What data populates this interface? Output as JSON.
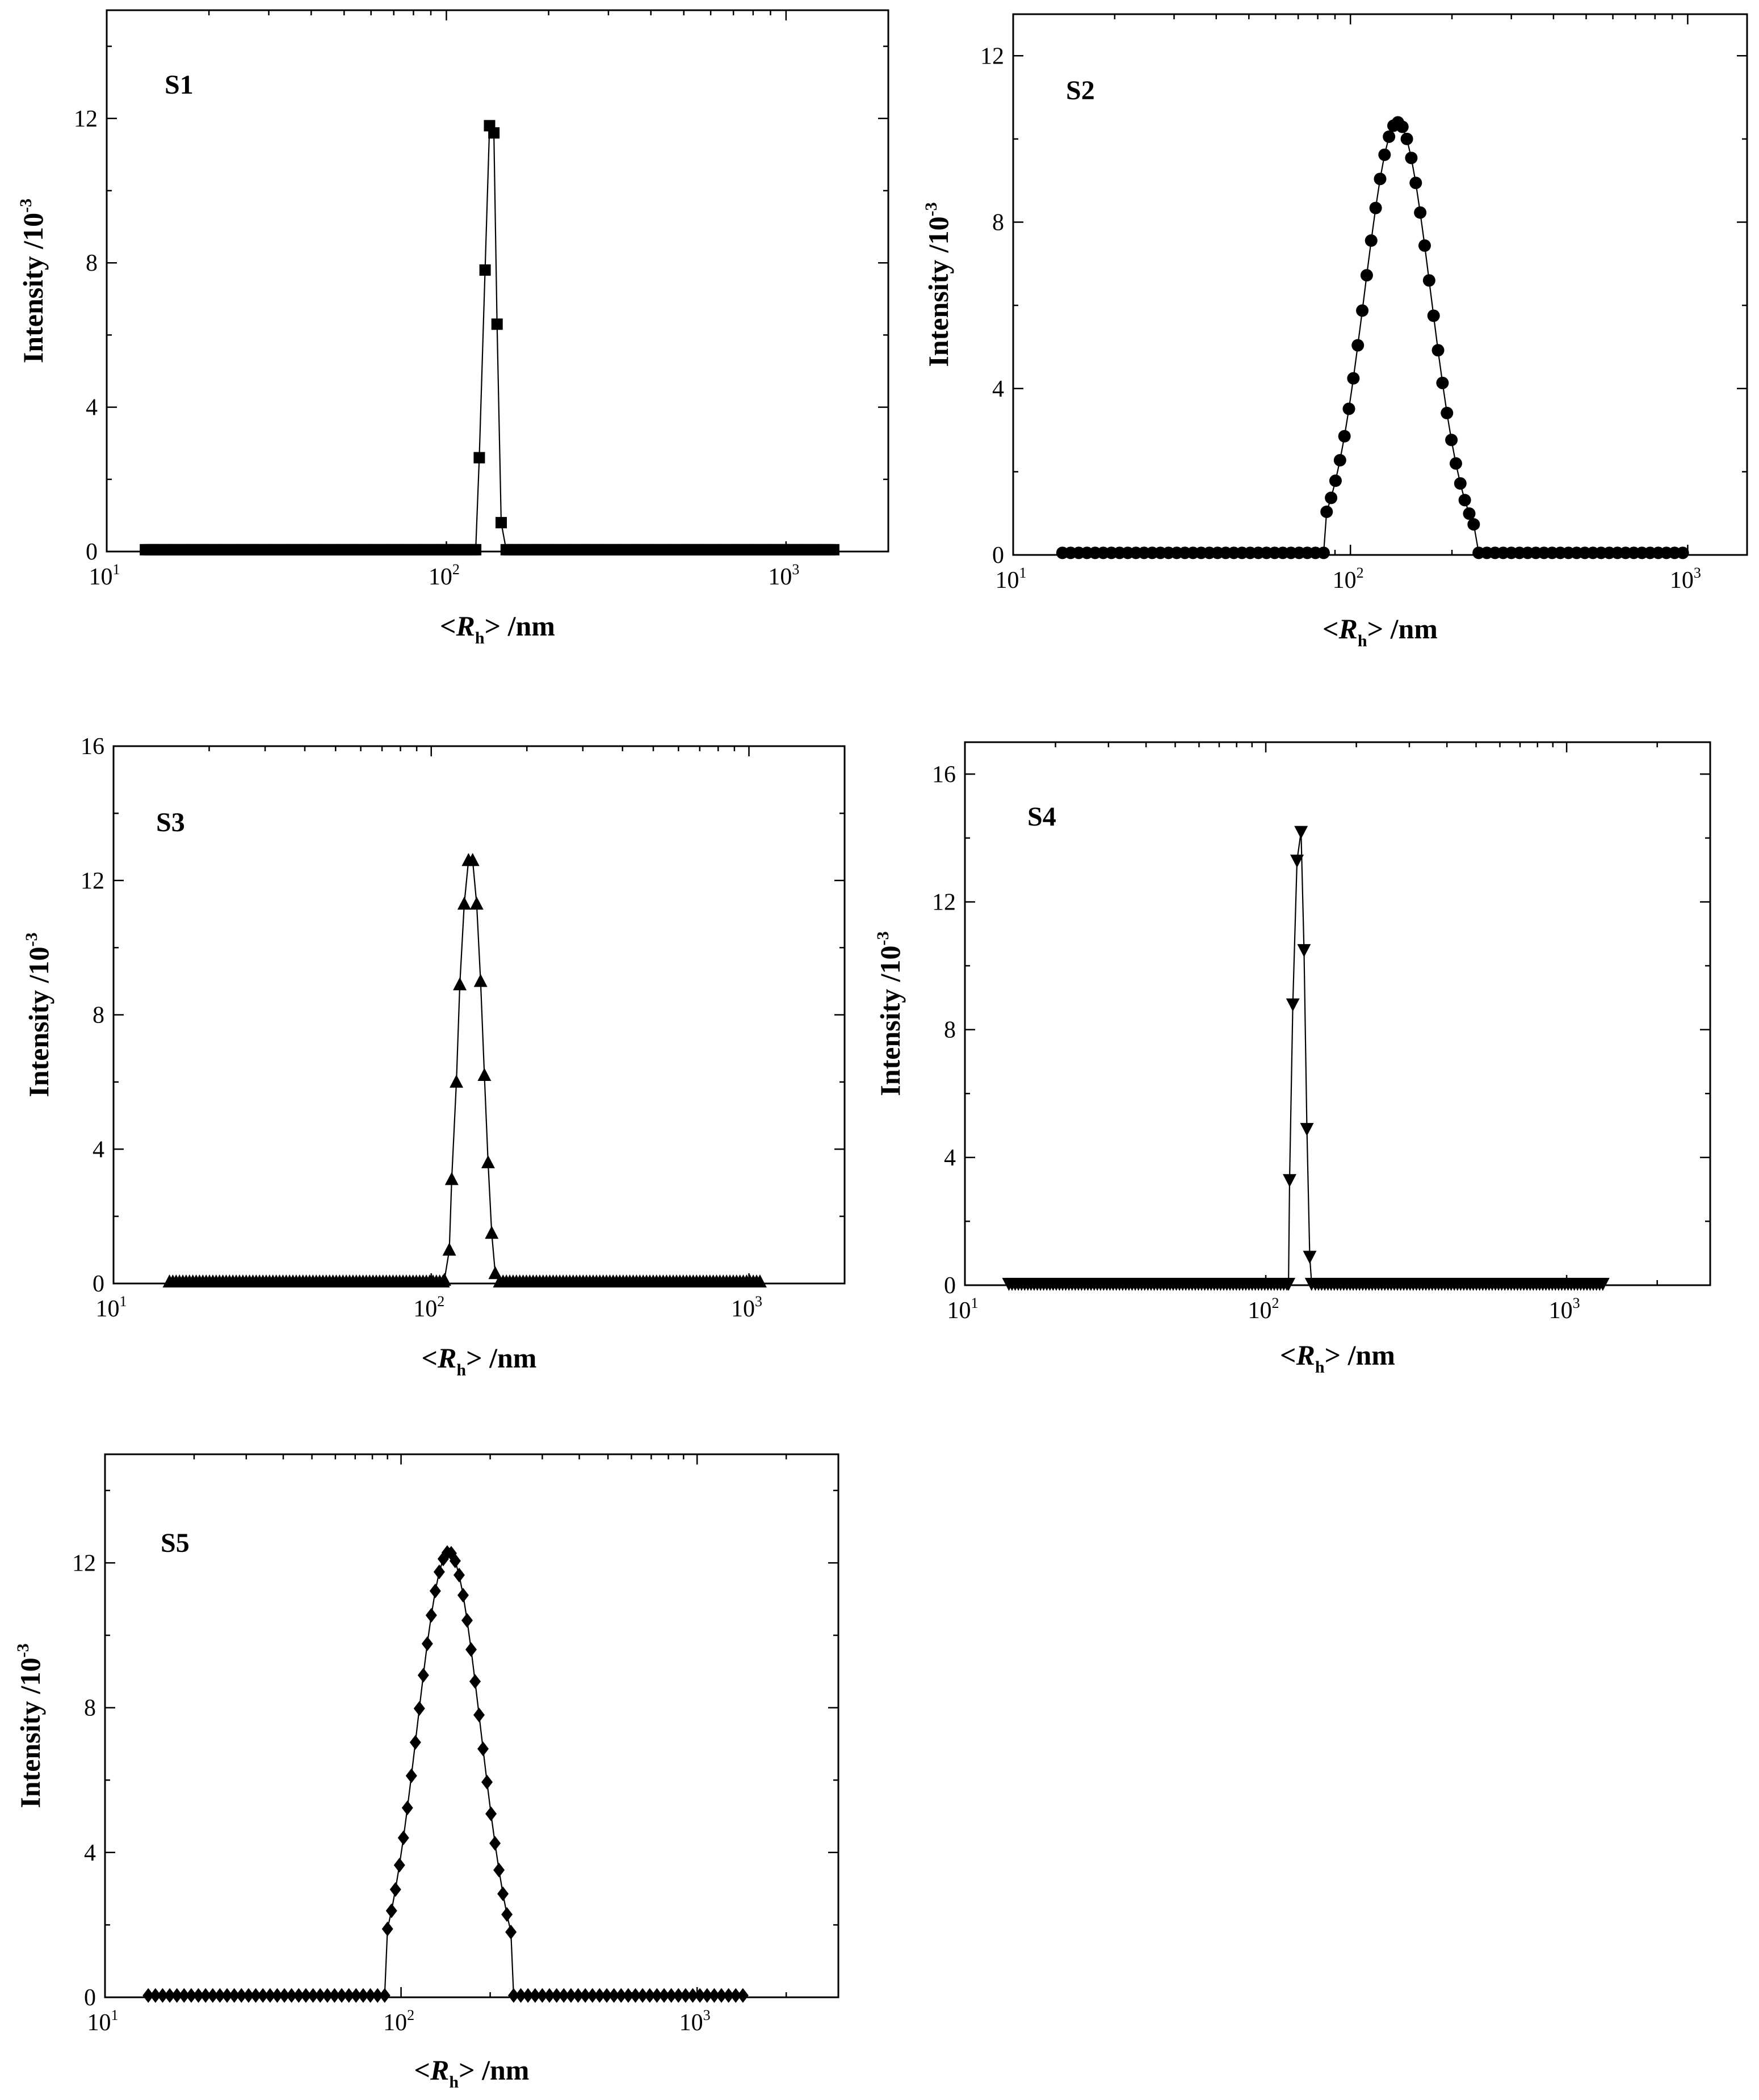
{
  "chart_data": [
    {
      "type": "scatter",
      "label": "S1",
      "marker": "square",
      "xlabel": "<Rh> /nm",
      "xlabel_parts": [
        "<",
        "R",
        "h",
        "> /nm"
      ],
      "ylabel": "Intensity /10-3",
      "ylabel_parts": [
        "Intensity /10",
        "-3"
      ],
      "xscale": "log",
      "xlim": [
        10,
        2000
      ],
      "ylim": [
        0,
        15
      ],
      "yticks": [
        0,
        4,
        8,
        12
      ],
      "xticks": [
        {
          "base": "10",
          "exp": "1",
          "value": 10
        },
        {
          "base": "10",
          "exp": "2",
          "value": 100
        },
        {
          "base": "10",
          "exp": "3",
          "value": 1000
        }
      ],
      "baseline_range": [
        13,
        1400
      ],
      "peak_points": [
        [
          122,
          0.05
        ],
        [
          125,
          2.6
        ],
        [
          130,
          7.8
        ],
        [
          134,
          11.8
        ],
        [
          138,
          11.6
        ],
        [
          141,
          6.3
        ],
        [
          145,
          0.8
        ],
        [
          150,
          0.05
        ]
      ]
    },
    {
      "type": "scatter",
      "label": "S2",
      "marker": "circle",
      "xlabel": "<Rh> /nm",
      "xlabel_parts": [
        "<",
        "R",
        "h",
        "> /nm"
      ],
      "ylabel": "Intensity /10-3",
      "ylabel_parts": [
        "Intensity /10",
        "-3"
      ],
      "xscale": "log",
      "xlim": [
        10,
        1500
      ],
      "ylim": [
        0,
        13
      ],
      "yticks": [
        0,
        4,
        8,
        12
      ],
      "xticks": [
        {
          "base": "10",
          "exp": "1",
          "value": 10
        },
        {
          "base": "10",
          "exp": "2",
          "value": 100
        },
        {
          "base": "10",
          "exp": "3",
          "value": 1000
        }
      ],
      "baseline_range": [
        14,
        1000
      ],
      "gaussian": {
        "center": 138,
        "sigma_log10": 0.098,
        "peak": 10.4,
        "start": 85,
        "end": 232,
        "count": 34
      }
    },
    {
      "type": "scatter",
      "label": "S3",
      "marker": "triangle-up",
      "xlabel": "<Rh> /nm",
      "xlabel_parts": [
        "<",
        "R",
        "h",
        "> /nm"
      ],
      "ylabel": "Intensity /10-3",
      "ylabel_parts": [
        "Intensity /10",
        "-3"
      ],
      "xscale": "log",
      "xlim": [
        10,
        2000
      ],
      "ylim": [
        0,
        16
      ],
      "yticks": [
        0,
        4,
        8,
        12,
        16
      ],
      "xticks": [
        {
          "base": "10",
          "exp": "1",
          "value": 10
        },
        {
          "base": "10",
          "exp": "2",
          "value": 100
        },
        {
          "base": "10",
          "exp": "3",
          "value": 1000
        }
      ],
      "baseline_range": [
        15,
        1100
      ],
      "peak_points": [
        [
          110,
          0.1
        ],
        [
          114,
          1.0
        ],
        [
          116,
          3.1
        ],
        [
          120,
          6.0
        ],
        [
          123,
          8.9
        ],
        [
          127,
          11.3
        ],
        [
          131,
          12.6
        ],
        [
          135,
          12.6
        ],
        [
          139,
          11.3
        ],
        [
          143,
          9.0
        ],
        [
          147,
          6.2
        ],
        [
          151,
          3.6
        ],
        [
          155,
          1.5
        ],
        [
          159,
          0.3
        ]
      ]
    },
    {
      "type": "scatter",
      "label": "S4",
      "marker": "triangle-down",
      "xlabel": "<Rh> /nm",
      "xlabel_parts": [
        "<",
        "R",
        "h",
        "> /nm"
      ],
      "ylabel": "Intensity /10-3",
      "ylabel_parts": [
        "Intensity /10",
        "-3"
      ],
      "xscale": "log",
      "xlim": [
        10,
        3000
      ],
      "ylim": [
        0,
        17
      ],
      "yticks": [
        0,
        4,
        8,
        12,
        16
      ],
      "xticks": [
        {
          "base": "10",
          "exp": "1",
          "value": 10
        },
        {
          "base": "10",
          "exp": "2",
          "value": 100
        },
        {
          "base": "10",
          "exp": "3",
          "value": 1000
        }
      ],
      "baseline_range": [
        14,
        1350
      ],
      "peak_points": [
        [
          119,
          0.05
        ],
        [
          120,
          3.3
        ],
        [
          123,
          8.8
        ],
        [
          127,
          13.3
        ],
        [
          131,
          14.2
        ],
        [
          134,
          10.5
        ],
        [
          137,
          4.9
        ],
        [
          140,
          0.9
        ],
        [
          142,
          0.05
        ]
      ]
    },
    {
      "type": "scatter",
      "label": "S5",
      "marker": "diamond",
      "xlabel": "<Rh> /nm",
      "xlabel_parts": [
        "<",
        "R",
        "h",
        "> /nm"
      ],
      "ylabel": "Intensity /10-3",
      "ylabel_parts": [
        "Intensity /10",
        "-3"
      ],
      "xscale": "log",
      "xlim": [
        10,
        3000
      ],
      "ylim": [
        0,
        15
      ],
      "yticks": [
        0,
        4,
        8,
        12
      ],
      "xticks": [
        {
          "base": "10",
          "exp": "1",
          "value": 10
        },
        {
          "base": "10",
          "exp": "2",
          "value": 100
        },
        {
          "base": "10",
          "exp": "3",
          "value": 1000
        }
      ],
      "baseline_range": [
        14,
        1450
      ],
      "gaussian": {
        "center": 145,
        "sigma_log10": 0.107,
        "peak": 12.3,
        "start": 90,
        "end": 235,
        "count": 32
      }
    }
  ]
}
